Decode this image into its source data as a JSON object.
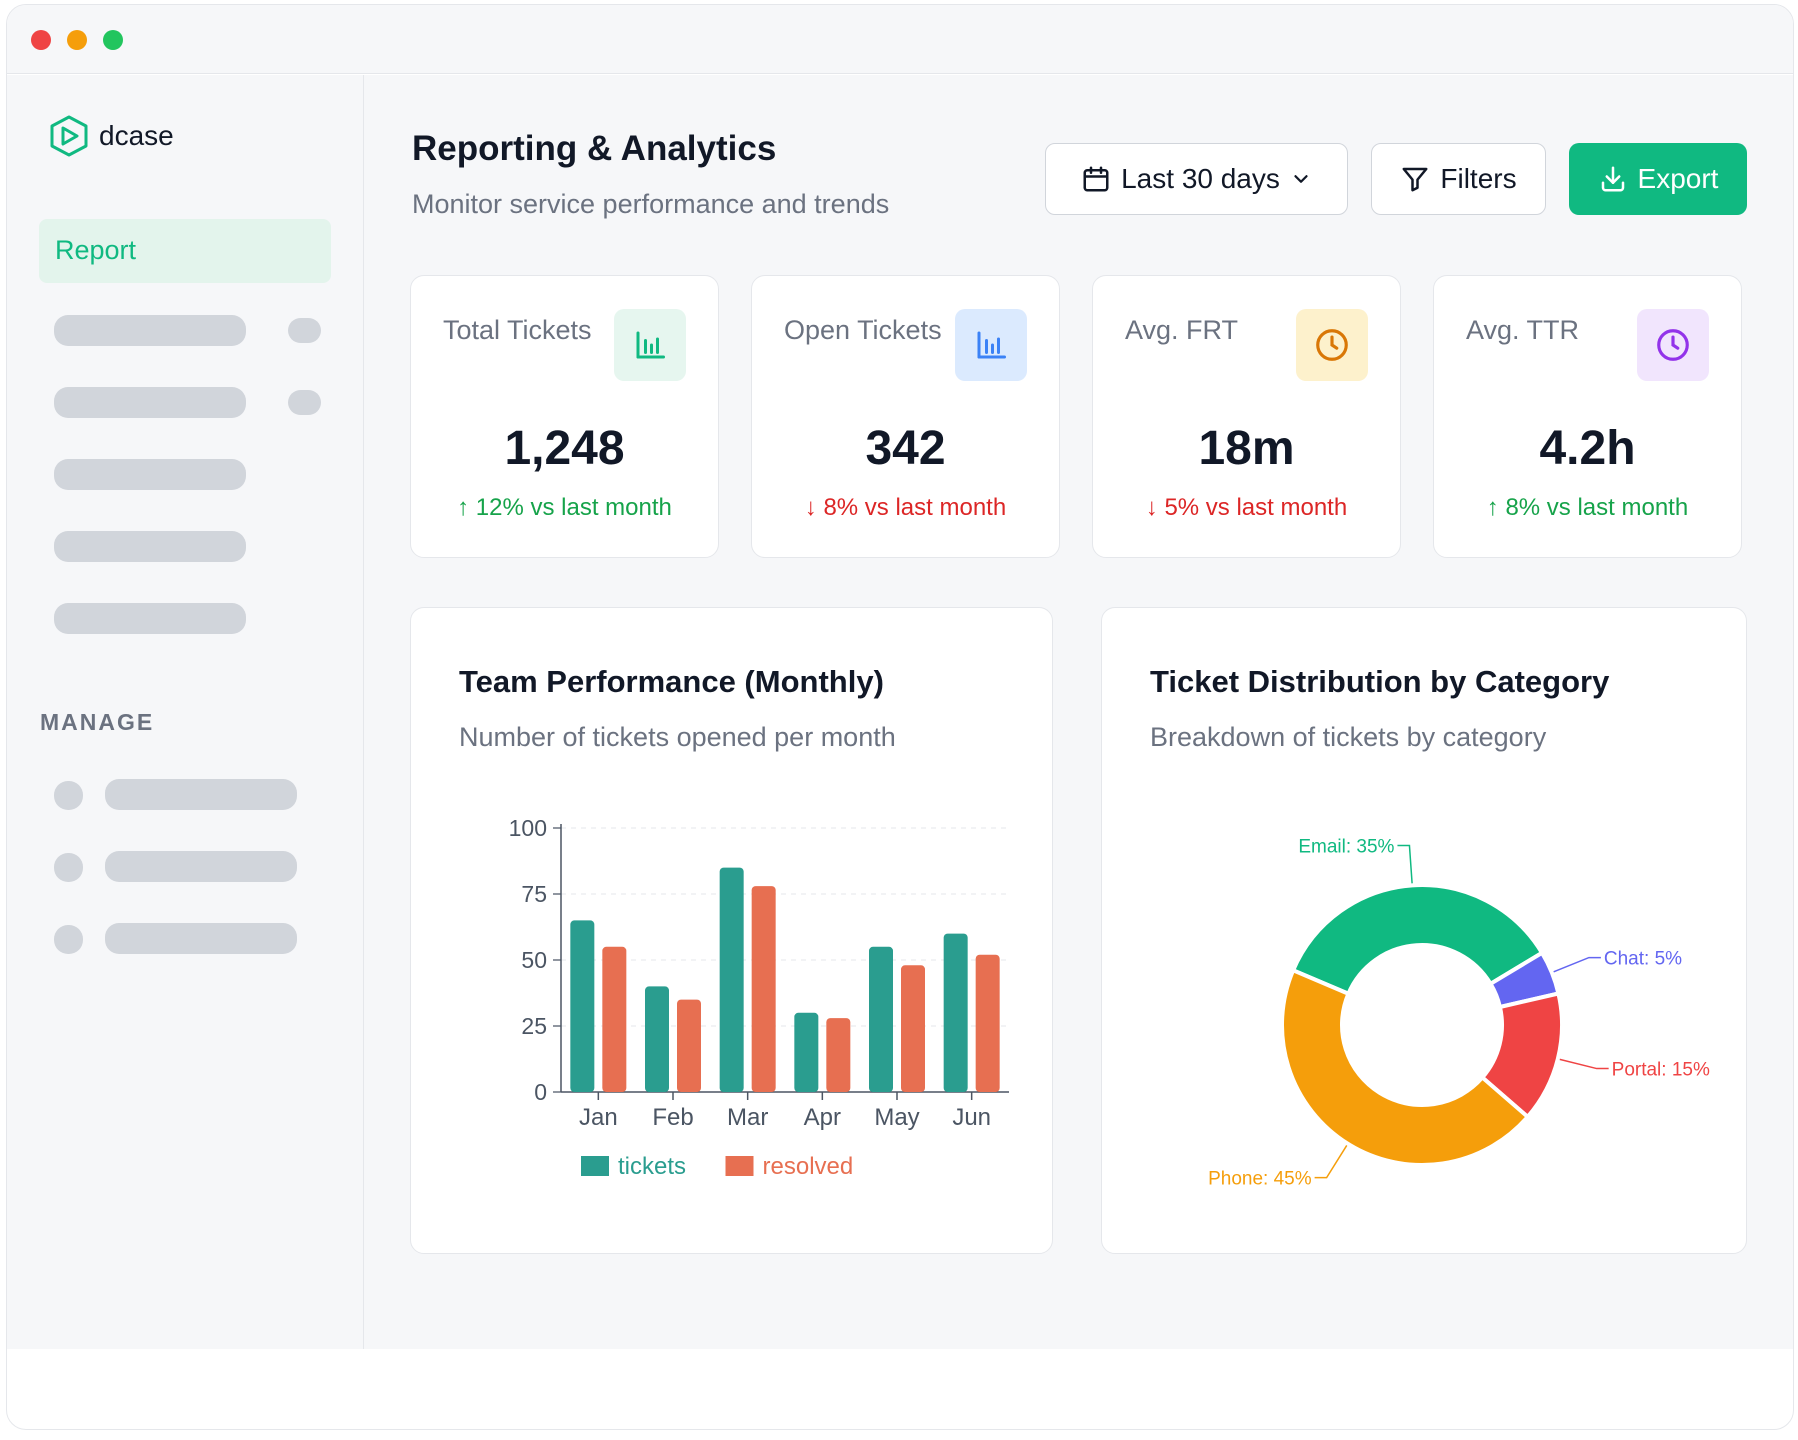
{
  "app": {
    "name": "dcase"
  },
  "sidebar": {
    "active_item": "Report",
    "section_label": "MANAGE"
  },
  "header": {
    "title": "Reporting & Analytics",
    "subtitle": "Monitor service performance and trends",
    "date_range": "Last 30 days",
    "filters_label": "Filters",
    "export_label": "Export"
  },
  "stats": [
    {
      "label": "Total Tickets",
      "value": "1,248",
      "change": "12% vs last month",
      "direction": "up",
      "icon": "bar-chart-icon",
      "icon_color": "#10b981",
      "icon_bg": "#e6f6ef"
    },
    {
      "label": "Open Tickets",
      "value": "342",
      "change": "8% vs last month",
      "direction": "down",
      "icon": "bar-chart-icon",
      "icon_color": "#3b82f6",
      "icon_bg": "#dbeafe"
    },
    {
      "label": "Avg. FRT",
      "value": "18m",
      "change": "5% vs last month",
      "direction": "down",
      "icon": "clock-icon",
      "icon_color": "#d97706",
      "icon_bg": "#fdf1cc"
    },
    {
      "label": "Avg. TTR",
      "value": "4.2h",
      "change": "8% vs last month",
      "direction": "up",
      "icon": "clock-icon",
      "icon_color": "#9333ea",
      "icon_bg": "#f1e5fd"
    }
  ],
  "team_chart": {
    "title": "Team Performance (Monthly)",
    "subtitle": "Number of tickets opened per month"
  },
  "category_chart": {
    "title": "Ticket Distribution by Category",
    "subtitle": "Breakdown of tickets by category"
  },
  "chart_data": [
    {
      "type": "bar",
      "title": "Team Performance (Monthly)",
      "categories": [
        "Jan",
        "Feb",
        "Mar",
        "Apr",
        "May",
        "Jun"
      ],
      "series": [
        {
          "name": "tickets",
          "color": "#2a9d8f",
          "values": [
            65,
            40,
            85,
            30,
            55,
            60
          ]
        },
        {
          "name": "resolved",
          "color": "#e76f51",
          "values": [
            55,
            35,
            78,
            28,
            48,
            52
          ]
        }
      ],
      "ylim": [
        0,
        100
      ],
      "yticks": [
        0,
        25,
        50,
        75,
        100
      ],
      "grid": true,
      "legend": "bottom"
    },
    {
      "type": "pie",
      "donut": true,
      "title": "Ticket Distribution by Category",
      "slices": [
        {
          "name": "Email",
          "value": 35,
          "color": "#10b981",
          "label": "Email: 35%"
        },
        {
          "name": "Chat",
          "value": 5,
          "color": "#6366f1",
          "label": "Chat: 5%"
        },
        {
          "name": "Portal",
          "value": 15,
          "color": "#ef4444",
          "label": "Portal: 15%"
        },
        {
          "name": "Phone",
          "value": 45,
          "color": "#f59e0b",
          "label": "Phone: 45%"
        }
      ]
    }
  ]
}
